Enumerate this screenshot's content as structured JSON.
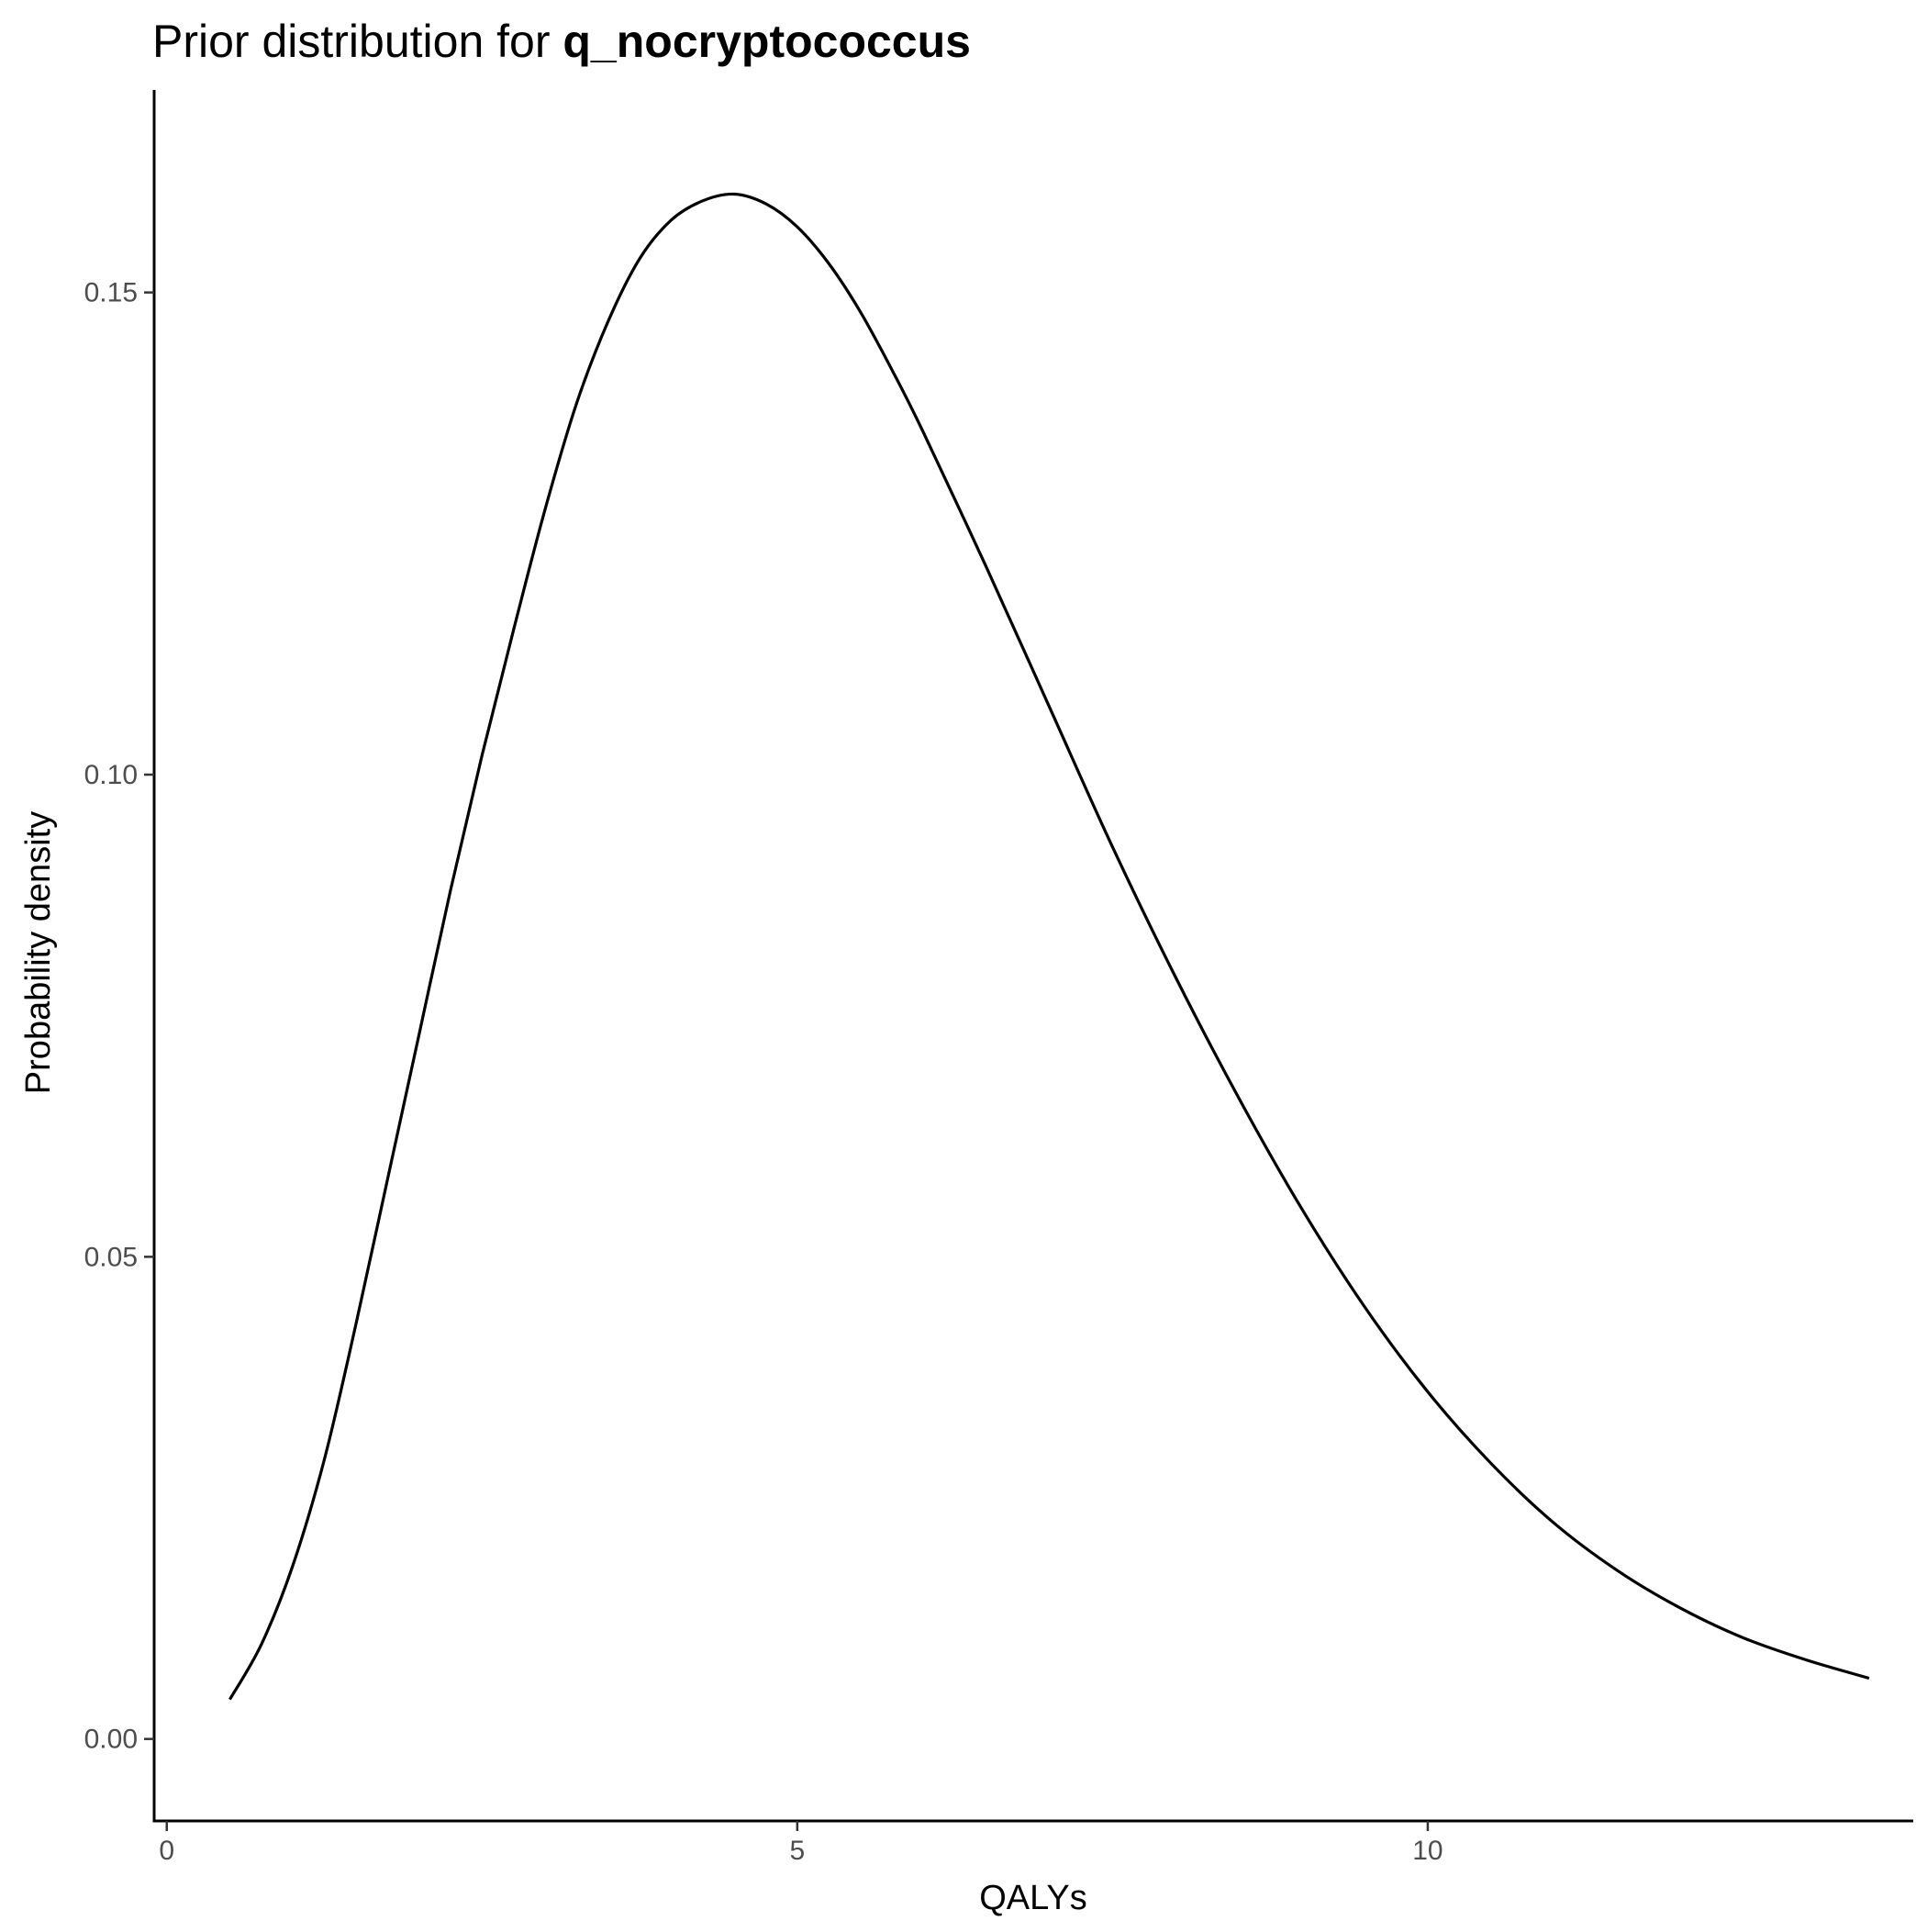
{
  "chart_data": {
    "type": "line",
    "title_prefix": "Prior distribution for ",
    "title_bold": "q_nocryptococcus",
    "xlabel": "QALYs",
    "ylabel": "Probability density",
    "xlim": [
      -0.1,
      13.85
    ],
    "ylim": [
      -0.0085,
      0.171
    ],
    "x_ticks": [
      0,
      5,
      10
    ],
    "x_tick_labels": [
      "0",
      "5",
      "10"
    ],
    "y_ticks": [
      0.0,
      0.05,
      0.1,
      0.15
    ],
    "y_tick_labels": [
      "0.00",
      "0.05",
      "0.10",
      "0.15"
    ],
    "grid": false,
    "legend": "none",
    "line_color": "#000000",
    "series": [
      {
        "x": [
          0.5,
          0.75,
          1.0,
          1.25,
          1.5,
          1.75,
          2.0,
          2.25,
          2.5,
          2.75,
          3.0,
          3.25,
          3.5,
          3.75,
          4.0,
          4.25,
          4.5,
          4.75,
          5.0,
          5.25,
          5.5,
          5.75,
          6.0,
          6.5,
          7.0,
          7.5,
          8.0,
          8.5,
          9.0,
          9.5,
          10.0,
          10.5,
          11.0,
          11.5,
          12.0,
          12.5,
          13.0,
          13.5
        ],
        "y": [
          0.0041,
          0.0098,
          0.018,
          0.029,
          0.043,
          0.058,
          0.073,
          0.088,
          0.102,
          0.115,
          0.1275,
          0.1385,
          0.147,
          0.1535,
          0.1575,
          0.1595,
          0.1602,
          0.1592,
          0.1568,
          0.153,
          0.148,
          0.142,
          0.1355,
          0.1215,
          0.107,
          0.0925,
          0.079,
          0.0665,
          0.055,
          0.0448,
          0.036,
          0.0286,
          0.0224,
          0.0175,
          0.0136,
          0.0105,
          0.0082,
          0.0063
        ]
      }
    ]
  }
}
